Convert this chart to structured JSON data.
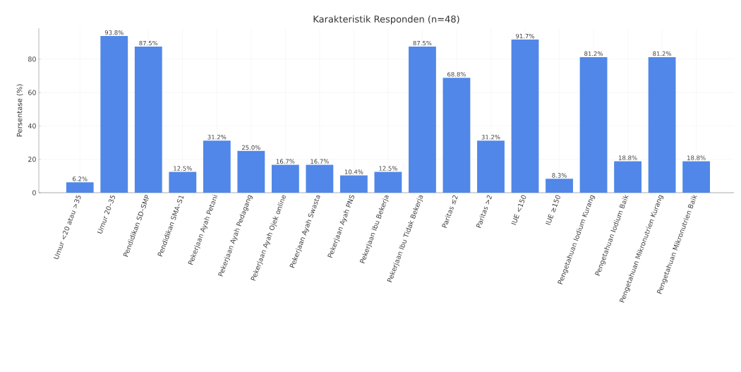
{
  "chart_data": {
    "type": "bar",
    "title": "Karakteristik Responden (n=48)",
    "ylabel": "Persentase (%)",
    "categories": [
      "Umur <20 atau >35",
      "Umur 20–35",
      "Pendidikan SD–SMP",
      "Pendidikan SMA–S1",
      "Pekerjaan Ayah Petani",
      "Pekerjaan Ayah Pedagang",
      "Pekerjaan Ayah Ojek online",
      "Pekerjaan Ayah Swasta",
      "Pekerjaan Ayah PNS",
      "Pekerjaan Ibu Bekerja",
      "Pekerjaan Ibu Tidak Bekerja",
      "Paritas ≤2",
      "Paritas >2",
      "IUE <150",
      "IUE ≥150",
      "Pengetahuan Iodium Kurang",
      "Pengetahuan Iodium Baik",
      "Pengetahuan Mikronutrien Kurang",
      "Pengetahuan Mikronutrien Baik"
    ],
    "values": [
      6.2,
      93.8,
      87.5,
      12.5,
      31.2,
      25.0,
      16.7,
      16.7,
      10.4,
      12.5,
      87.5,
      68.8,
      31.2,
      91.7,
      8.3,
      81.2,
      18.8,
      81.2,
      18.8
    ],
    "value_labels": [
      "6.2%",
      "93.8%",
      "87.5%",
      "12.5%",
      "31.2%",
      "25.0%",
      "16.7%",
      "16.7%",
      "10.4%",
      "12.5%",
      "87.5%",
      "68.8%",
      "31.2%",
      "91.7%",
      "8.3%",
      "81.2%",
      "18.8%",
      "81.2%",
      "18.8%"
    ],
    "color": "#5087e8",
    "ylim": [
      0,
      98.5
    ],
    "yticks": [
      0,
      20,
      40,
      60,
      80
    ],
    "grid": true
  }
}
